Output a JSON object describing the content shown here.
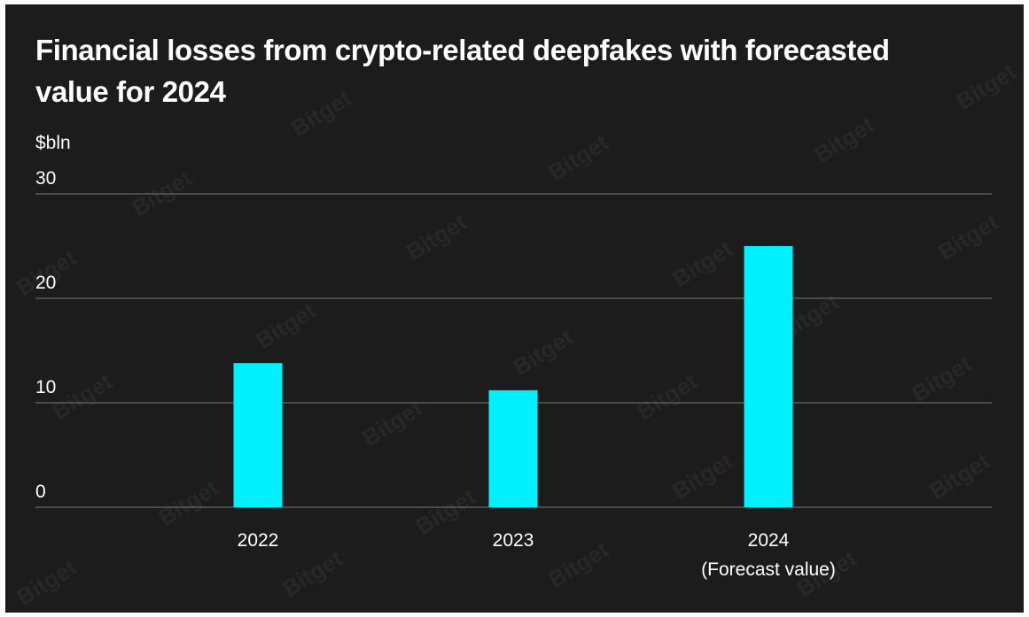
{
  "watermark_text": "Bitget",
  "chart_data": {
    "type": "bar",
    "title": "Financial losses from crypto-related deepfakes with forecasted value for 2024",
    "ylabel": "$bln",
    "xlabel": "",
    "ylim": [
      0,
      30
    ],
    "yticks": [
      0,
      10,
      20,
      30
    ],
    "grid": true,
    "categories": [
      [
        "2022"
      ],
      [
        "2023"
      ],
      [
        "2024",
        "(Forecast value)"
      ]
    ],
    "values": [
      13.8,
      11.2,
      25
    ],
    "bar_color": "#00f0ff",
    "gridline_color": "#7a7a7a",
    "background_color": "#1c1c1c"
  }
}
